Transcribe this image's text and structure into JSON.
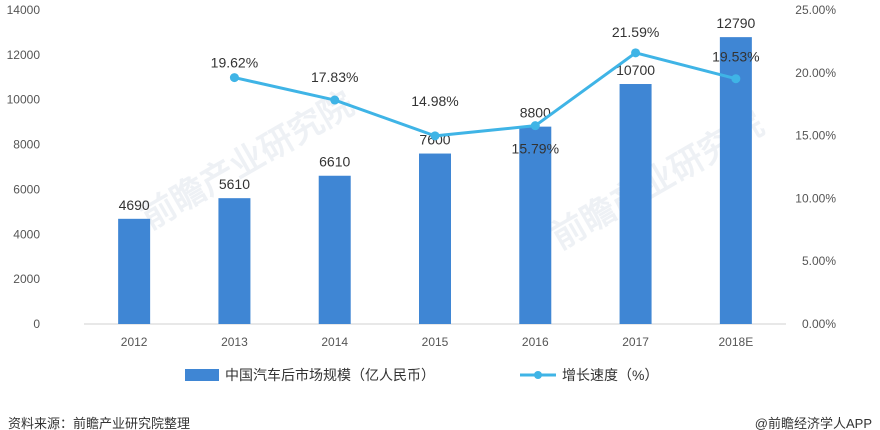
{
  "chart_data": {
    "type": "bar",
    "categories": [
      "2012",
      "2013",
      "2014",
      "2015",
      "2016",
      "2017",
      "2018E"
    ],
    "series": [
      {
        "name": "中国汽车后市场规模（亿人民币）",
        "type": "bar",
        "axis": "left",
        "values": [
          4690,
          5610,
          6610,
          7600,
          8800,
          10700,
          12790
        ],
        "labels": [
          "4690",
          "5610",
          "6610",
          "7600",
          "8800",
          "10700",
          "12790"
        ],
        "color": "#3f86d4"
      },
      {
        "name": "增长速度（%）",
        "type": "line",
        "axis": "right",
        "values": [
          null,
          19.62,
          17.83,
          14.98,
          15.79,
          21.59,
          19.53
        ],
        "labels": [
          "",
          "19.62%",
          "17.83%",
          "14.98%",
          "15.79%",
          "21.59%",
          "19.53%"
        ],
        "color": "#3fb4e6"
      }
    ],
    "left_axis": {
      "ylim": [
        0,
        14000
      ],
      "ticks": [
        "0",
        "2000",
        "4000",
        "6000",
        "8000",
        "10000",
        "12000",
        "14000"
      ]
    },
    "right_axis": {
      "ylim": [
        0,
        25
      ],
      "ticks": [
        "0.00%",
        "5.00%",
        "10.00%",
        "15.00%",
        "20.00%",
        "25.00%"
      ]
    },
    "grid": false,
    "legend_position": "bottom"
  },
  "footer": {
    "source": "资料来源：前瞻产业研究院整理",
    "credit": "@前瞻经济学人APP"
  },
  "colors": {
    "bar": "#3f86d4",
    "line": "#3fb4e6",
    "axis": "#d0d0d0"
  }
}
